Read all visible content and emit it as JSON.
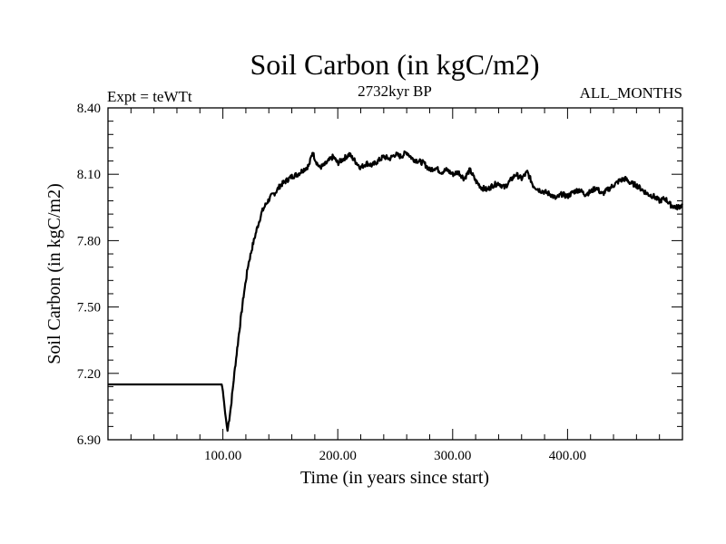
{
  "chart_data": {
    "type": "line",
    "title": "Soil Carbon (in kgC/m2)",
    "subtitle_left": "Expt = teWTt",
    "subtitle_center": "2732kyr BP",
    "subtitle_right": "ALL_MONTHS",
    "xlabel": "Time (in years since start)",
    "ylabel": "Soil Carbon (in kgC/m2)",
    "xlim": [
      0,
      500
    ],
    "ylim": [
      6.9,
      8.4
    ],
    "x_ticks": [
      100,
      200,
      300,
      400
    ],
    "x_tick_labels": [
      "100.00",
      "200.00",
      "300.00",
      "400.00"
    ],
    "y_ticks": [
      6.9,
      7.2,
      7.5,
      7.8,
      8.1,
      8.4
    ],
    "y_tick_labels": [
      "6.90",
      "7.20",
      "7.50",
      "7.80",
      "8.10",
      "8.40"
    ],
    "grid": false,
    "line_color": "#000000",
    "series": [
      {
        "name": "Soil Carbon",
        "x": [
          0,
          99,
          100,
          102,
          104,
          107,
          110,
          114,
          118,
          122,
          126,
          130,
          134,
          138,
          142,
          146,
          150,
          155,
          160,
          165,
          170,
          175,
          178,
          181,
          184,
          188,
          192,
          196,
          200,
          205,
          210,
          215,
          220,
          225,
          230,
          235,
          240,
          245,
          250,
          255,
          260,
          265,
          270,
          275,
          280,
          285,
          290,
          295,
          300,
          305,
          310,
          315,
          320,
          325,
          330,
          335,
          340,
          345,
          350,
          355,
          360,
          365,
          370,
          375,
          380,
          385,
          390,
          395,
          400,
          405,
          410,
          415,
          420,
          425,
          430,
          435,
          440,
          445,
          450,
          455,
          460,
          465,
          470,
          475,
          480,
          485,
          490,
          495,
          500
        ],
        "values": [
          7.15,
          7.15,
          7.12,
          7.02,
          6.94,
          7.05,
          7.2,
          7.38,
          7.55,
          7.69,
          7.78,
          7.86,
          7.93,
          7.97,
          8.0,
          8.02,
          8.05,
          8.07,
          8.09,
          8.1,
          8.12,
          8.14,
          8.2,
          8.16,
          8.13,
          8.14,
          8.16,
          8.18,
          8.15,
          8.17,
          8.19,
          8.16,
          8.13,
          8.15,
          8.14,
          8.16,
          8.18,
          8.17,
          8.19,
          8.18,
          8.2,
          8.17,
          8.16,
          8.15,
          8.12,
          8.13,
          8.11,
          8.12,
          8.1,
          8.11,
          8.08,
          8.12,
          8.07,
          8.04,
          8.03,
          8.05,
          8.06,
          8.04,
          8.07,
          8.1,
          8.08,
          8.11,
          8.05,
          8.03,
          8.02,
          8.01,
          7.99,
          8.01,
          8.0,
          8.02,
          8.03,
          8.01,
          8.02,
          8.04,
          8.01,
          8.03,
          8.05,
          8.07,
          8.08,
          8.06,
          8.05,
          8.03,
          8.01,
          8.0,
          7.98,
          7.99,
          7.96,
          7.95,
          7.96
        ]
      }
    ]
  }
}
